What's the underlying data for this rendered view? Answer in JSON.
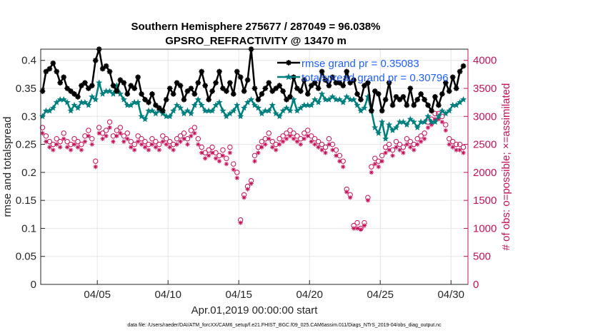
{
  "chart_data": {
    "type": "line",
    "title_line1": "Southern Hemisphere 275677 / 287049 = 96.038%",
    "title_line2": "GPSRO_REFRACTIVITY @ 13470 m",
    "xlabel": "Apr.01,2019 00:00:00 start",
    "ylabel": "rmse and totalspread",
    "ylabel_right": "# of obs: o=possible; ×=assimilated",
    "footnote": "data file: /Users/raeder/DAI/ATM_forcXX/CAM6_setup/f.e21.FHIST_BGC.f09_025.CAM6assim.011/Diags_NTrS_2019-04/obs_diag_output.nc",
    "xlim": [
      1.0,
      31.2
    ],
    "ylim": [
      0,
      0.42
    ],
    "ylim_right": [
      0,
      4200
    ],
    "x_ticks": [
      5,
      10,
      15,
      20,
      25,
      30
    ],
    "x_tick_labels": [
      "04/05",
      "04/10",
      "04/15",
      "04/20",
      "04/25",
      "04/30"
    ],
    "y_ticks": [
      0,
      0.05,
      0.1,
      0.15,
      0.2,
      0.25,
      0.3,
      0.35,
      0.4
    ],
    "y_tick_labels": [
      "0",
      "0.05",
      "0.1",
      "0.15",
      "0.2",
      "0.25",
      "0.3",
      "0.35",
      "0.4"
    ],
    "y_ticks_right": [
      0,
      500,
      1000,
      1500,
      2000,
      2500,
      3000,
      3500,
      4000
    ],
    "y_tick_labels_right": [
      "0",
      "500",
      "1000",
      "1500",
      "2000",
      "2500",
      "3000",
      "3500",
      "4000"
    ],
    "grid": true,
    "legend_position": "top-right",
    "colors": {
      "rmse": "#000000",
      "spread": "#007f7f",
      "obs": "#c8105a",
      "legend_text": "#1f5fff",
      "axis": "#262626",
      "grid": "#e6e6e6"
    },
    "series": [
      {
        "name": "rmse grand pr = 0.35083",
        "key": "rmse",
        "marker": "asterisk",
        "axis": "left",
        "x": [
          1.125,
          1.375,
          1.625,
          1.875,
          2.125,
          2.375,
          2.625,
          2.875,
          3.125,
          3.375,
          3.625,
          3.875,
          4.125,
          4.375,
          4.625,
          4.875,
          5.125,
          5.375,
          5.625,
          5.875,
          6.125,
          6.375,
          6.625,
          6.875,
          7.125,
          7.375,
          7.625,
          7.875,
          8.125,
          8.375,
          8.625,
          8.875,
          9.125,
          9.375,
          9.625,
          9.875,
          10.125,
          10.375,
          10.625,
          10.875,
          11.125,
          11.375,
          11.625,
          11.875,
          12.125,
          12.375,
          12.625,
          12.875,
          13.125,
          13.375,
          13.625,
          13.875,
          14.125,
          14.375,
          14.625,
          14.875,
          15.125,
          15.375,
          15.625,
          15.875,
          16.125,
          16.375,
          16.625,
          16.875,
          17.125,
          17.375,
          17.625,
          17.875,
          18.125,
          18.375,
          18.625,
          18.875,
          19.125,
          19.375,
          19.625,
          19.875,
          20.125,
          20.375,
          20.625,
          20.875,
          21.125,
          21.375,
          21.625,
          21.875,
          22.125,
          22.375,
          22.625,
          22.875,
          23.125,
          23.375,
          23.625,
          23.875,
          24.125,
          24.375,
          24.625,
          24.875,
          25.125,
          25.375,
          25.625,
          25.875,
          26.125,
          26.375,
          26.625,
          26.875,
          27.125,
          27.375,
          27.625,
          27.875,
          28.125,
          28.375,
          28.625,
          28.875,
          29.125,
          29.375,
          29.625,
          29.875,
          30.125,
          30.375,
          30.625,
          30.875
        ],
        "values": [
          0.345,
          0.38,
          0.385,
          0.395,
          0.38,
          0.36,
          0.37,
          0.35,
          0.345,
          0.34,
          0.335,
          0.355,
          0.36,
          0.35,
          0.355,
          0.4,
          0.42,
          0.385,
          0.39,
          0.38,
          0.355,
          0.345,
          0.365,
          0.36,
          0.34,
          0.355,
          0.35,
          0.37,
          0.34,
          0.33,
          0.325,
          0.34,
          0.32,
          0.315,
          0.31,
          0.33,
          0.35,
          0.34,
          0.36,
          0.355,
          0.33,
          0.345,
          0.35,
          0.34,
          0.36,
          0.38,
          0.355,
          0.33,
          0.345,
          0.36,
          0.38,
          0.35,
          0.345,
          0.36,
          0.34,
          0.38,
          0.37,
          0.345,
          0.365,
          0.42,
          0.35,
          0.33,
          0.34,
          0.35,
          0.36,
          0.345,
          0.35,
          0.355,
          0.345,
          0.33,
          0.335,
          0.37,
          0.35,
          0.345,
          0.365,
          0.34,
          0.355,
          0.36,
          0.35,
          0.38,
          0.365,
          0.355,
          0.37,
          0.36,
          0.36,
          0.355,
          0.38,
          0.36,
          0.365,
          0.34,
          0.33,
          0.355,
          0.36,
          0.31,
          0.345,
          0.34,
          0.31,
          0.33,
          0.36,
          0.32,
          0.335,
          0.33,
          0.335,
          0.32,
          0.35,
          0.32,
          0.33,
          0.34,
          0.33,
          0.32,
          0.31,
          0.335,
          0.32,
          0.34,
          0.36,
          0.345,
          0.37,
          0.35,
          0.38,
          0.39
        ]
      },
      {
        "name": "totalspread grand pr = 0.30796",
        "key": "spread",
        "marker": "star",
        "axis": "left",
        "x": [
          1.125,
          1.375,
          1.625,
          1.875,
          2.125,
          2.375,
          2.625,
          2.875,
          3.125,
          3.375,
          3.625,
          3.875,
          4.125,
          4.375,
          4.625,
          4.875,
          5.125,
          5.375,
          5.625,
          5.875,
          6.125,
          6.375,
          6.625,
          6.875,
          7.125,
          7.375,
          7.625,
          7.875,
          8.125,
          8.375,
          8.625,
          8.875,
          9.125,
          9.375,
          9.625,
          9.875,
          10.125,
          10.375,
          10.625,
          10.875,
          11.125,
          11.375,
          11.625,
          11.875,
          12.125,
          12.375,
          12.625,
          12.875,
          13.125,
          13.375,
          13.625,
          13.875,
          14.125,
          14.375,
          14.625,
          14.875,
          15.125,
          15.375,
          15.625,
          15.875,
          16.125,
          16.375,
          16.625,
          16.875,
          17.125,
          17.375,
          17.625,
          17.875,
          18.125,
          18.375,
          18.625,
          18.875,
          19.125,
          19.375,
          19.625,
          19.875,
          20.125,
          20.375,
          20.625,
          20.875,
          21.125,
          21.375,
          21.625,
          21.875,
          22.125,
          22.375,
          22.625,
          22.875,
          23.125,
          23.375,
          23.625,
          23.875,
          24.125,
          24.375,
          24.625,
          24.875,
          25.125,
          25.375,
          25.625,
          25.875,
          26.125,
          26.375,
          26.625,
          26.875,
          27.125,
          27.375,
          27.625,
          27.875,
          28.125,
          28.375,
          28.625,
          28.875,
          29.125,
          29.375,
          29.625,
          29.875,
          30.125,
          30.375,
          30.625,
          30.875
        ],
        "values": [
          0.3,
          0.31,
          0.31,
          0.315,
          0.325,
          0.33,
          0.33,
          0.325,
          0.31,
          0.32,
          0.315,
          0.325,
          0.325,
          0.32,
          0.335,
          0.33,
          0.36,
          0.34,
          0.345,
          0.345,
          0.34,
          0.355,
          0.34,
          0.33,
          0.32,
          0.32,
          0.325,
          0.325,
          0.3,
          0.295,
          0.31,
          0.31,
          0.305,
          0.31,
          0.305,
          0.3,
          0.3,
          0.31,
          0.32,
          0.315,
          0.305,
          0.31,
          0.305,
          0.32,
          0.33,
          0.32,
          0.31,
          0.31,
          0.31,
          0.32,
          0.325,
          0.31,
          0.3,
          0.305,
          0.31,
          0.32,
          0.3,
          0.315,
          0.325,
          0.33,
          0.32,
          0.315,
          0.305,
          0.31,
          0.31,
          0.32,
          0.305,
          0.3,
          0.31,
          0.315,
          0.31,
          0.33,
          0.31,
          0.315,
          0.32,
          0.32,
          0.32,
          0.33,
          0.325,
          0.34,
          0.33,
          0.33,
          0.335,
          0.33,
          0.33,
          0.325,
          0.335,
          0.33,
          0.33,
          0.32,
          0.31,
          0.315,
          0.335,
          0.31,
          0.28,
          0.27,
          0.29,
          0.26,
          0.285,
          0.275,
          0.28,
          0.29,
          0.29,
          0.285,
          0.295,
          0.29,
          0.28,
          0.29,
          0.29,
          0.3,
          0.29,
          0.29,
          0.3,
          0.31,
          0.305,
          0.31,
          0.32,
          0.32,
          0.325,
          0.33
        ]
      },
      {
        "name": "possible",
        "key": "possible",
        "marker": "circle",
        "axis": "right",
        "x": [
          1.125,
          1.375,
          1.625,
          1.875,
          2.125,
          2.375,
          2.625,
          2.875,
          3.125,
          3.375,
          3.625,
          3.875,
          4.125,
          4.375,
          4.625,
          4.875,
          5.125,
          5.375,
          5.625,
          5.875,
          6.125,
          6.375,
          6.625,
          6.875,
          7.125,
          7.375,
          7.625,
          7.875,
          8.125,
          8.375,
          8.625,
          8.875,
          9.125,
          9.375,
          9.625,
          9.875,
          10.125,
          10.375,
          10.625,
          10.875,
          11.125,
          11.375,
          11.625,
          11.875,
          12.125,
          12.375,
          12.625,
          12.875,
          13.125,
          13.375,
          13.625,
          13.875,
          14.125,
          14.375,
          14.625,
          14.875,
          15.125,
          15.375,
          15.625,
          15.875,
          16.125,
          16.375,
          16.625,
          16.875,
          17.125,
          17.375,
          17.625,
          17.875,
          18.125,
          18.375,
          18.625,
          18.875,
          19.125,
          19.375,
          19.625,
          19.875,
          20.125,
          20.375,
          20.625,
          20.875,
          21.125,
          21.375,
          21.625,
          21.875,
          22.125,
          22.375,
          22.625,
          22.875,
          23.125,
          23.375,
          23.625,
          23.875,
          24.125,
          24.375,
          24.625,
          24.875,
          25.125,
          25.375,
          25.625,
          25.875,
          26.125,
          26.375,
          26.625,
          26.875,
          27.125,
          27.375,
          27.625,
          27.875,
          28.125,
          28.375,
          28.625,
          28.875,
          29.125,
          29.375,
          29.625,
          29.875,
          30.125,
          30.375,
          30.625,
          30.875
        ],
        "values": [
          2800,
          2650,
          2550,
          2500,
          2600,
          2550,
          2700,
          2550,
          2500,
          2600,
          2550,
          2500,
          2650,
          2750,
          2600,
          2200,
          2800,
          2700,
          2750,
          2900,
          2650,
          2750,
          2800,
          2650,
          2700,
          2550,
          2500,
          2650,
          2600,
          2550,
          2500,
          2600,
          2550,
          2500,
          2650,
          2600,
          2550,
          2500,
          2600,
          2650,
          2700,
          2600,
          2750,
          2800,
          2600,
          2450,
          2350,
          2400,
          2450,
          2350,
          2300,
          2400,
          2250,
          2450,
          2150,
          2000,
          1150,
          1600,
          1750,
          1850,
          2300,
          2450,
          2550,
          2600,
          2700,
          2550,
          2500,
          2600,
          2650,
          2700,
          2750,
          2700,
          2650,
          2600,
          2700,
          2750,
          2650,
          2600,
          2550,
          2500,
          2450,
          2600,
          2500,
          2400,
          2300,
          2200,
          1700,
          1600,
          1050,
          1100,
          1000,
          1100,
          1550,
          2100,
          2250,
          2200,
          2300,
          2450,
          2500,
          2400,
          2550,
          2500,
          2450,
          2600,
          2550,
          2500,
          2600,
          2650,
          2700,
          2900,
          2950,
          3050,
          3050,
          3000,
          2850,
          2600,
          2550,
          2500,
          2500,
          2450
        ]
      },
      {
        "name": "assimilated",
        "key": "assimilated",
        "marker": "asterisk",
        "axis": "right",
        "x": [
          1.125,
          1.375,
          1.625,
          1.875,
          2.125,
          2.375,
          2.625,
          2.875,
          3.125,
          3.375,
          3.625,
          3.875,
          4.125,
          4.375,
          4.625,
          4.875,
          5.125,
          5.375,
          5.625,
          5.875,
          6.125,
          6.375,
          6.625,
          6.875,
          7.125,
          7.375,
          7.625,
          7.875,
          8.125,
          8.375,
          8.625,
          8.875,
          9.125,
          9.375,
          9.625,
          9.875,
          10.125,
          10.375,
          10.625,
          10.875,
          11.125,
          11.375,
          11.625,
          11.875,
          12.125,
          12.375,
          12.625,
          12.875,
          13.125,
          13.375,
          13.625,
          13.875,
          14.125,
          14.375,
          14.625,
          14.875,
          15.125,
          15.375,
          15.625,
          15.875,
          16.125,
          16.375,
          16.625,
          16.875,
          17.125,
          17.375,
          17.625,
          17.875,
          18.125,
          18.375,
          18.625,
          18.875,
          19.125,
          19.375,
          19.625,
          19.875,
          20.125,
          20.375,
          20.625,
          20.875,
          21.125,
          21.375,
          21.625,
          21.875,
          22.125,
          22.375,
          22.625,
          22.875,
          23.125,
          23.375,
          23.625,
          23.875,
          24.125,
          24.375,
          24.625,
          24.875,
          25.125,
          25.375,
          25.625,
          25.875,
          26.125,
          26.375,
          26.625,
          26.875,
          27.125,
          27.375,
          27.625,
          27.875,
          28.125,
          28.375,
          28.625,
          28.875,
          29.125,
          29.375,
          29.625,
          29.875,
          30.125,
          30.375,
          30.625,
          30.875
        ],
        "values": [
          2700,
          2550,
          2450,
          2400,
          2500,
          2450,
          2600,
          2450,
          2400,
          2500,
          2450,
          2400,
          2550,
          2650,
          2500,
          2100,
          2700,
          2600,
          2650,
          2800,
          2550,
          2650,
          2700,
          2550,
          2600,
          2450,
          2400,
          2550,
          2500,
          2450,
          2400,
          2500,
          2450,
          2400,
          2550,
          2500,
          2450,
          2400,
          2500,
          2550,
          2600,
          2500,
          2650,
          2700,
          2500,
          2350,
          2250,
          2300,
          2350,
          2250,
          2200,
          2300,
          2150,
          2350,
          2050,
          1900,
          1100,
          1550,
          1700,
          1800,
          2200,
          2350,
          2450,
          2500,
          2600,
          2450,
          2400,
          2500,
          2550,
          2600,
          2650,
          2600,
          2550,
          2500,
          2600,
          2650,
          2550,
          2500,
          2450,
          2400,
          2350,
          2500,
          2400,
          2300,
          2200,
          2100,
          1650,
          1550,
          1000,
          1000,
          980,
          1050,
          1500,
          2000,
          2150,
          2100,
          2200,
          2350,
          2400,
          2300,
          2450,
          2400,
          2350,
          2500,
          2450,
          2400,
          2500,
          2550,
          2600,
          2800,
          2850,
          2950,
          2950,
          2900,
          2750,
          2500,
          2450,
          2400,
          2400,
          2350
        ]
      }
    ]
  }
}
